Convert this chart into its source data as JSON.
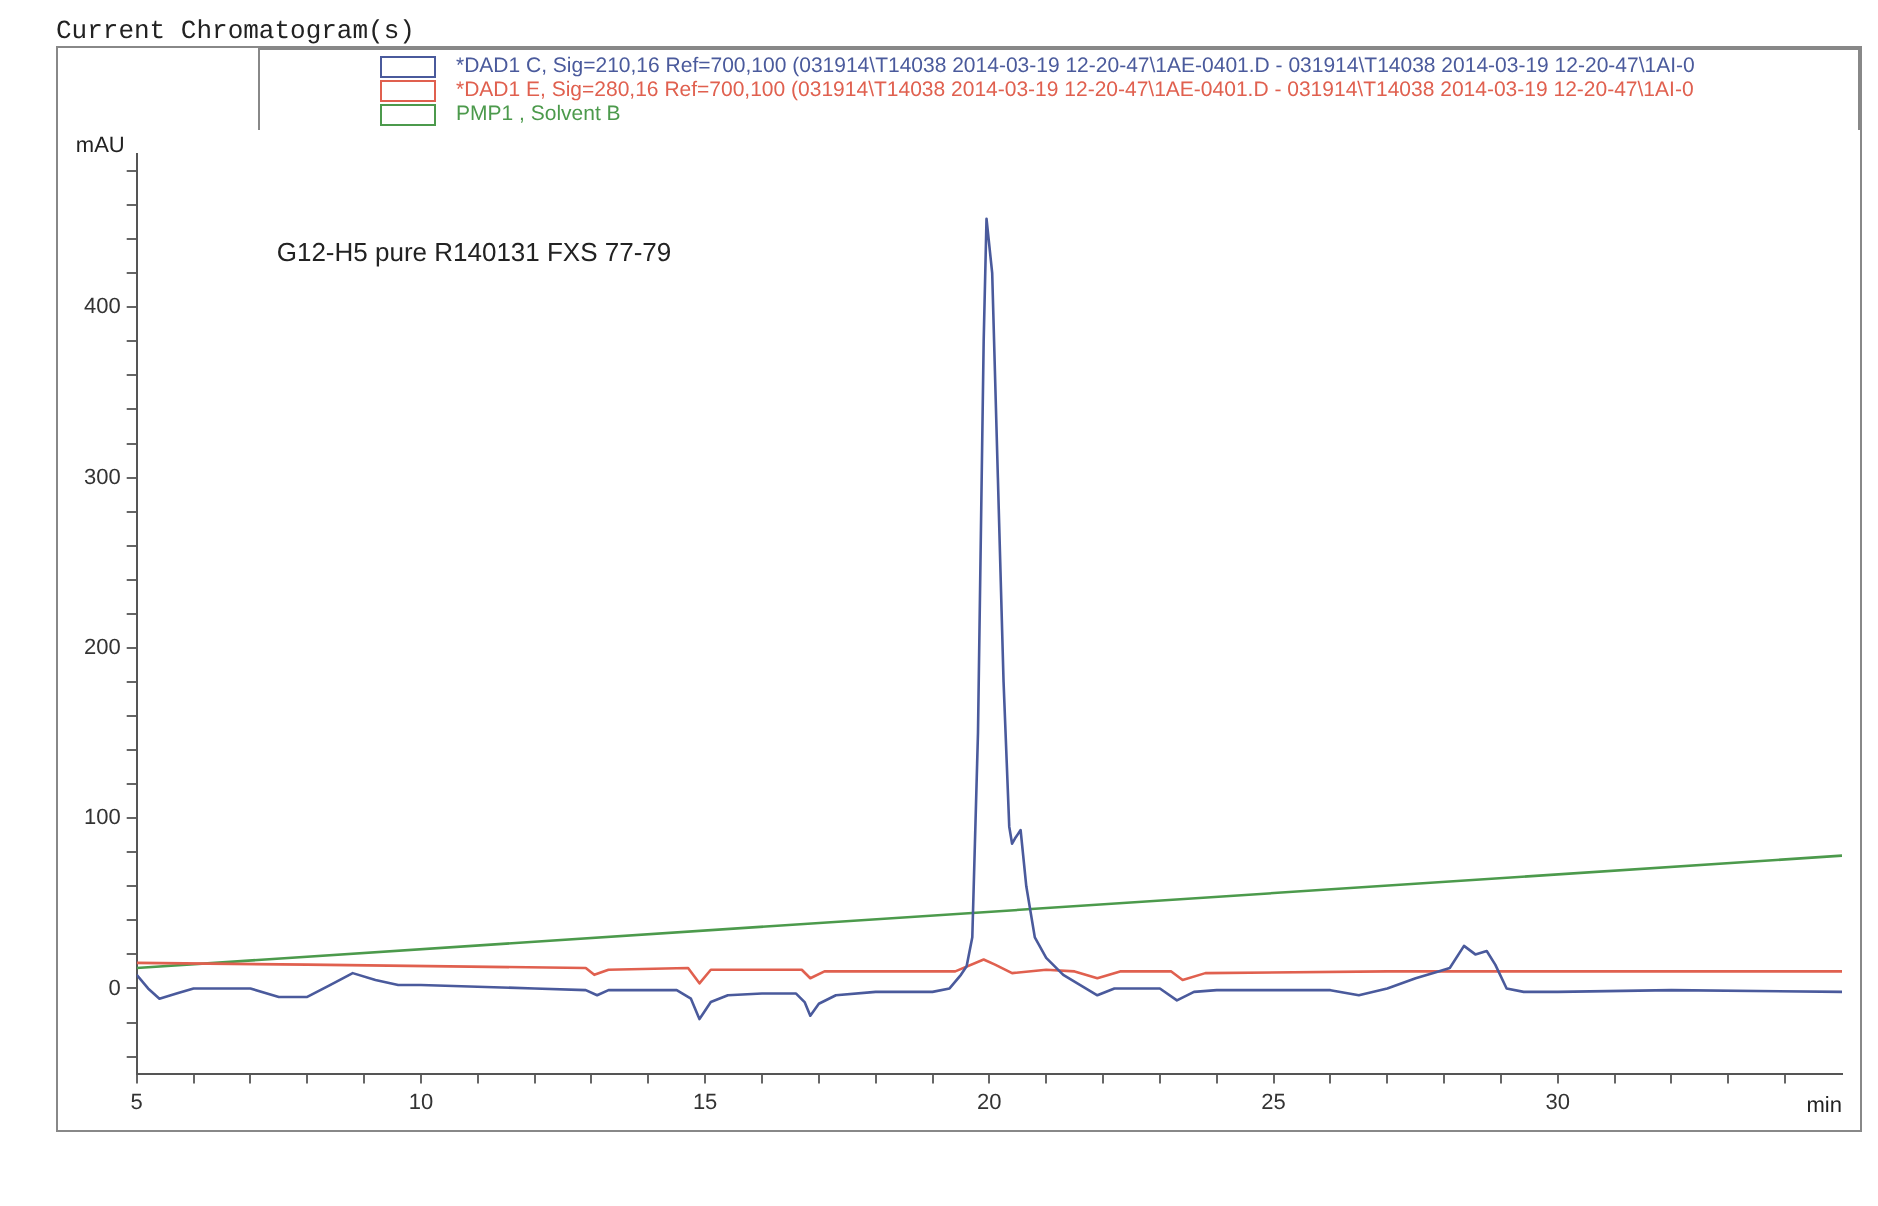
{
  "chart_data": {
    "type": "line",
    "title": "Current Chromatogram(s)",
    "xlabel": "min",
    "ylabel": "mAU",
    "annotations": [
      "G12-H5 pure R140131 FXS 77-79"
    ],
    "legend": "top",
    "grid": false,
    "marker": "none",
    "line_style": "solid",
    "xlim": [
      5,
      35
    ],
    "ylim": [
      -50,
      490
    ],
    "xticks": [
      5,
      {
        "value": 6,
        "label": null
      },
      {
        "value": 7,
        "label": null
      },
      {
        "value": 8,
        "label": null
      },
      {
        "value": 9,
        "label": null
      },
      10,
      {
        "value": 11,
        "label": null
      },
      {
        "value": 12,
        "label": null
      },
      {
        "value": 13,
        "label": null
      },
      {
        "value": 14,
        "label": null
      },
      15,
      {
        "value": 16,
        "label": null
      },
      {
        "value": 17,
        "label": null
      },
      {
        "value": 18,
        "label": null
      },
      {
        "value": 19,
        "label": null
      },
      20,
      {
        "value": 21,
        "label": null
      },
      {
        "value": 22,
        "label": null
      },
      {
        "value": 23,
        "label": null
      },
      {
        "value": 24,
        "label": null
      },
      25,
      {
        "value": 26,
        "label": null
      },
      {
        "value": 27,
        "label": null
      },
      {
        "value": 28,
        "label": null
      },
      {
        "value": 29,
        "label": null
      },
      30,
      {
        "value": 31,
        "label": null
      },
      {
        "value": 32,
        "label": null
      },
      {
        "value": 33,
        "label": null
      },
      {
        "value": 34,
        "label": null
      }
    ],
    "yticks": [
      {
        "value": -40,
        "label": null
      },
      {
        "value": -20,
        "label": null
      },
      0,
      {
        "value": 20,
        "label": null
      },
      {
        "value": 40,
        "label": null
      },
      {
        "value": 60,
        "label": null
      },
      {
        "value": 80,
        "label": null
      },
      100,
      {
        "value": 120,
        "label": null
      },
      {
        "value": 140,
        "label": null
      },
      {
        "value": 160,
        "label": null
      },
      {
        "value": 180,
        "label": null
      },
      200,
      {
        "value": 220,
        "label": null
      },
      {
        "value": 240,
        "label": null
      },
      {
        "value": 260,
        "label": null
      },
      {
        "value": 280,
        "label": null
      },
      300,
      {
        "value": 320,
        "label": null
      },
      {
        "value": 340,
        "label": null
      },
      {
        "value": 360,
        "label": null
      },
      {
        "value": 380,
        "label": null
      },
      400,
      {
        "value": 420,
        "label": null
      },
      {
        "value": 440,
        "label": null
      },
      {
        "value": 460,
        "label": null
      },
      {
        "value": 480,
        "label": null
      }
    ],
    "series": [
      {
        "name": "*DAD1 C, Sig=210,16 Ref=700,100 (031914\\T14038 2014-03-19 12-20-47\\1AE-0401.D - 031914\\T14038 2014-03-19 12-20-47\\1AI-0",
        "color": "#4a5a9c",
        "x": [
          5,
          5.2,
          5.4,
          5.7,
          6,
          7,
          7.5,
          8,
          8.4,
          8.8,
          9.2,
          9.6,
          10,
          12,
          12.9,
          13.1,
          13.3,
          14.5,
          14.75,
          14.9,
          15.1,
          15.4,
          16,
          16.6,
          16.75,
          16.85,
          17,
          17.3,
          18,
          19,
          19.3,
          19.5,
          19.6,
          19.7,
          19.8,
          19.9,
          19.95,
          20.05,
          20.15,
          20.25,
          20.35,
          20.4,
          20.45,
          20.55,
          20.65,
          20.8,
          21,
          21.3,
          21.6,
          21.9,
          22.2,
          23,
          23.3,
          23.6,
          24,
          25,
          26,
          26.5,
          27,
          27.5,
          27.9,
          28.1,
          28.35,
          28.55,
          28.75,
          28.9,
          29.1,
          29.4,
          30,
          32,
          35
        ],
        "values": [
          8,
          0,
          -6,
          -3,
          0,
          0,
          -5,
          -5,
          2,
          9,
          5,
          2,
          2,
          0,
          -1,
          -4,
          -1,
          -1,
          -6,
          -18,
          -8,
          -4,
          -3,
          -3,
          -8,
          -16,
          -9,
          -4,
          -2,
          -2,
          0,
          8,
          13,
          30,
          150,
          380,
          452,
          420,
          300,
          180,
          95,
          85,
          88,
          93,
          60,
          30,
          18,
          8,
          2,
          -4,
          0,
          0,
          -7,
          -2,
          -1,
          -1,
          -1,
          -4,
          0,
          6,
          10,
          12,
          25,
          20,
          22,
          14,
          0,
          -2,
          -2,
          -1,
          -2
        ]
      },
      {
        "name": "*DAD1 E, Sig=280,16 Ref=700,100 (031914\\T14038 2014-03-19 12-20-47\\1AE-0401.D - 031914\\T14038 2014-03-19 12-20-47\\1AI-0",
        "color": "#e0604f",
        "x": [
          5,
          8,
          12.9,
          13.05,
          13.3,
          14.7,
          14.9,
          15.1,
          16.7,
          16.85,
          17.1,
          19.4,
          19.9,
          20.1,
          20.4,
          21,
          21.5,
          21.9,
          22.3,
          23.2,
          23.4,
          23.8,
          27,
          35
        ],
        "values": [
          15,
          14,
          12,
          8,
          11,
          12,
          3,
          11,
          11,
          6,
          10,
          10,
          17,
          14,
          9,
          11,
          10,
          6,
          10,
          10,
          5,
          9,
          10,
          10
        ]
      },
      {
        "name": "PMP1 , Solvent B",
        "color": "#4c9a4c",
        "x": [
          5,
          35
        ],
        "values": [
          12,
          78
        ]
      }
    ]
  }
}
